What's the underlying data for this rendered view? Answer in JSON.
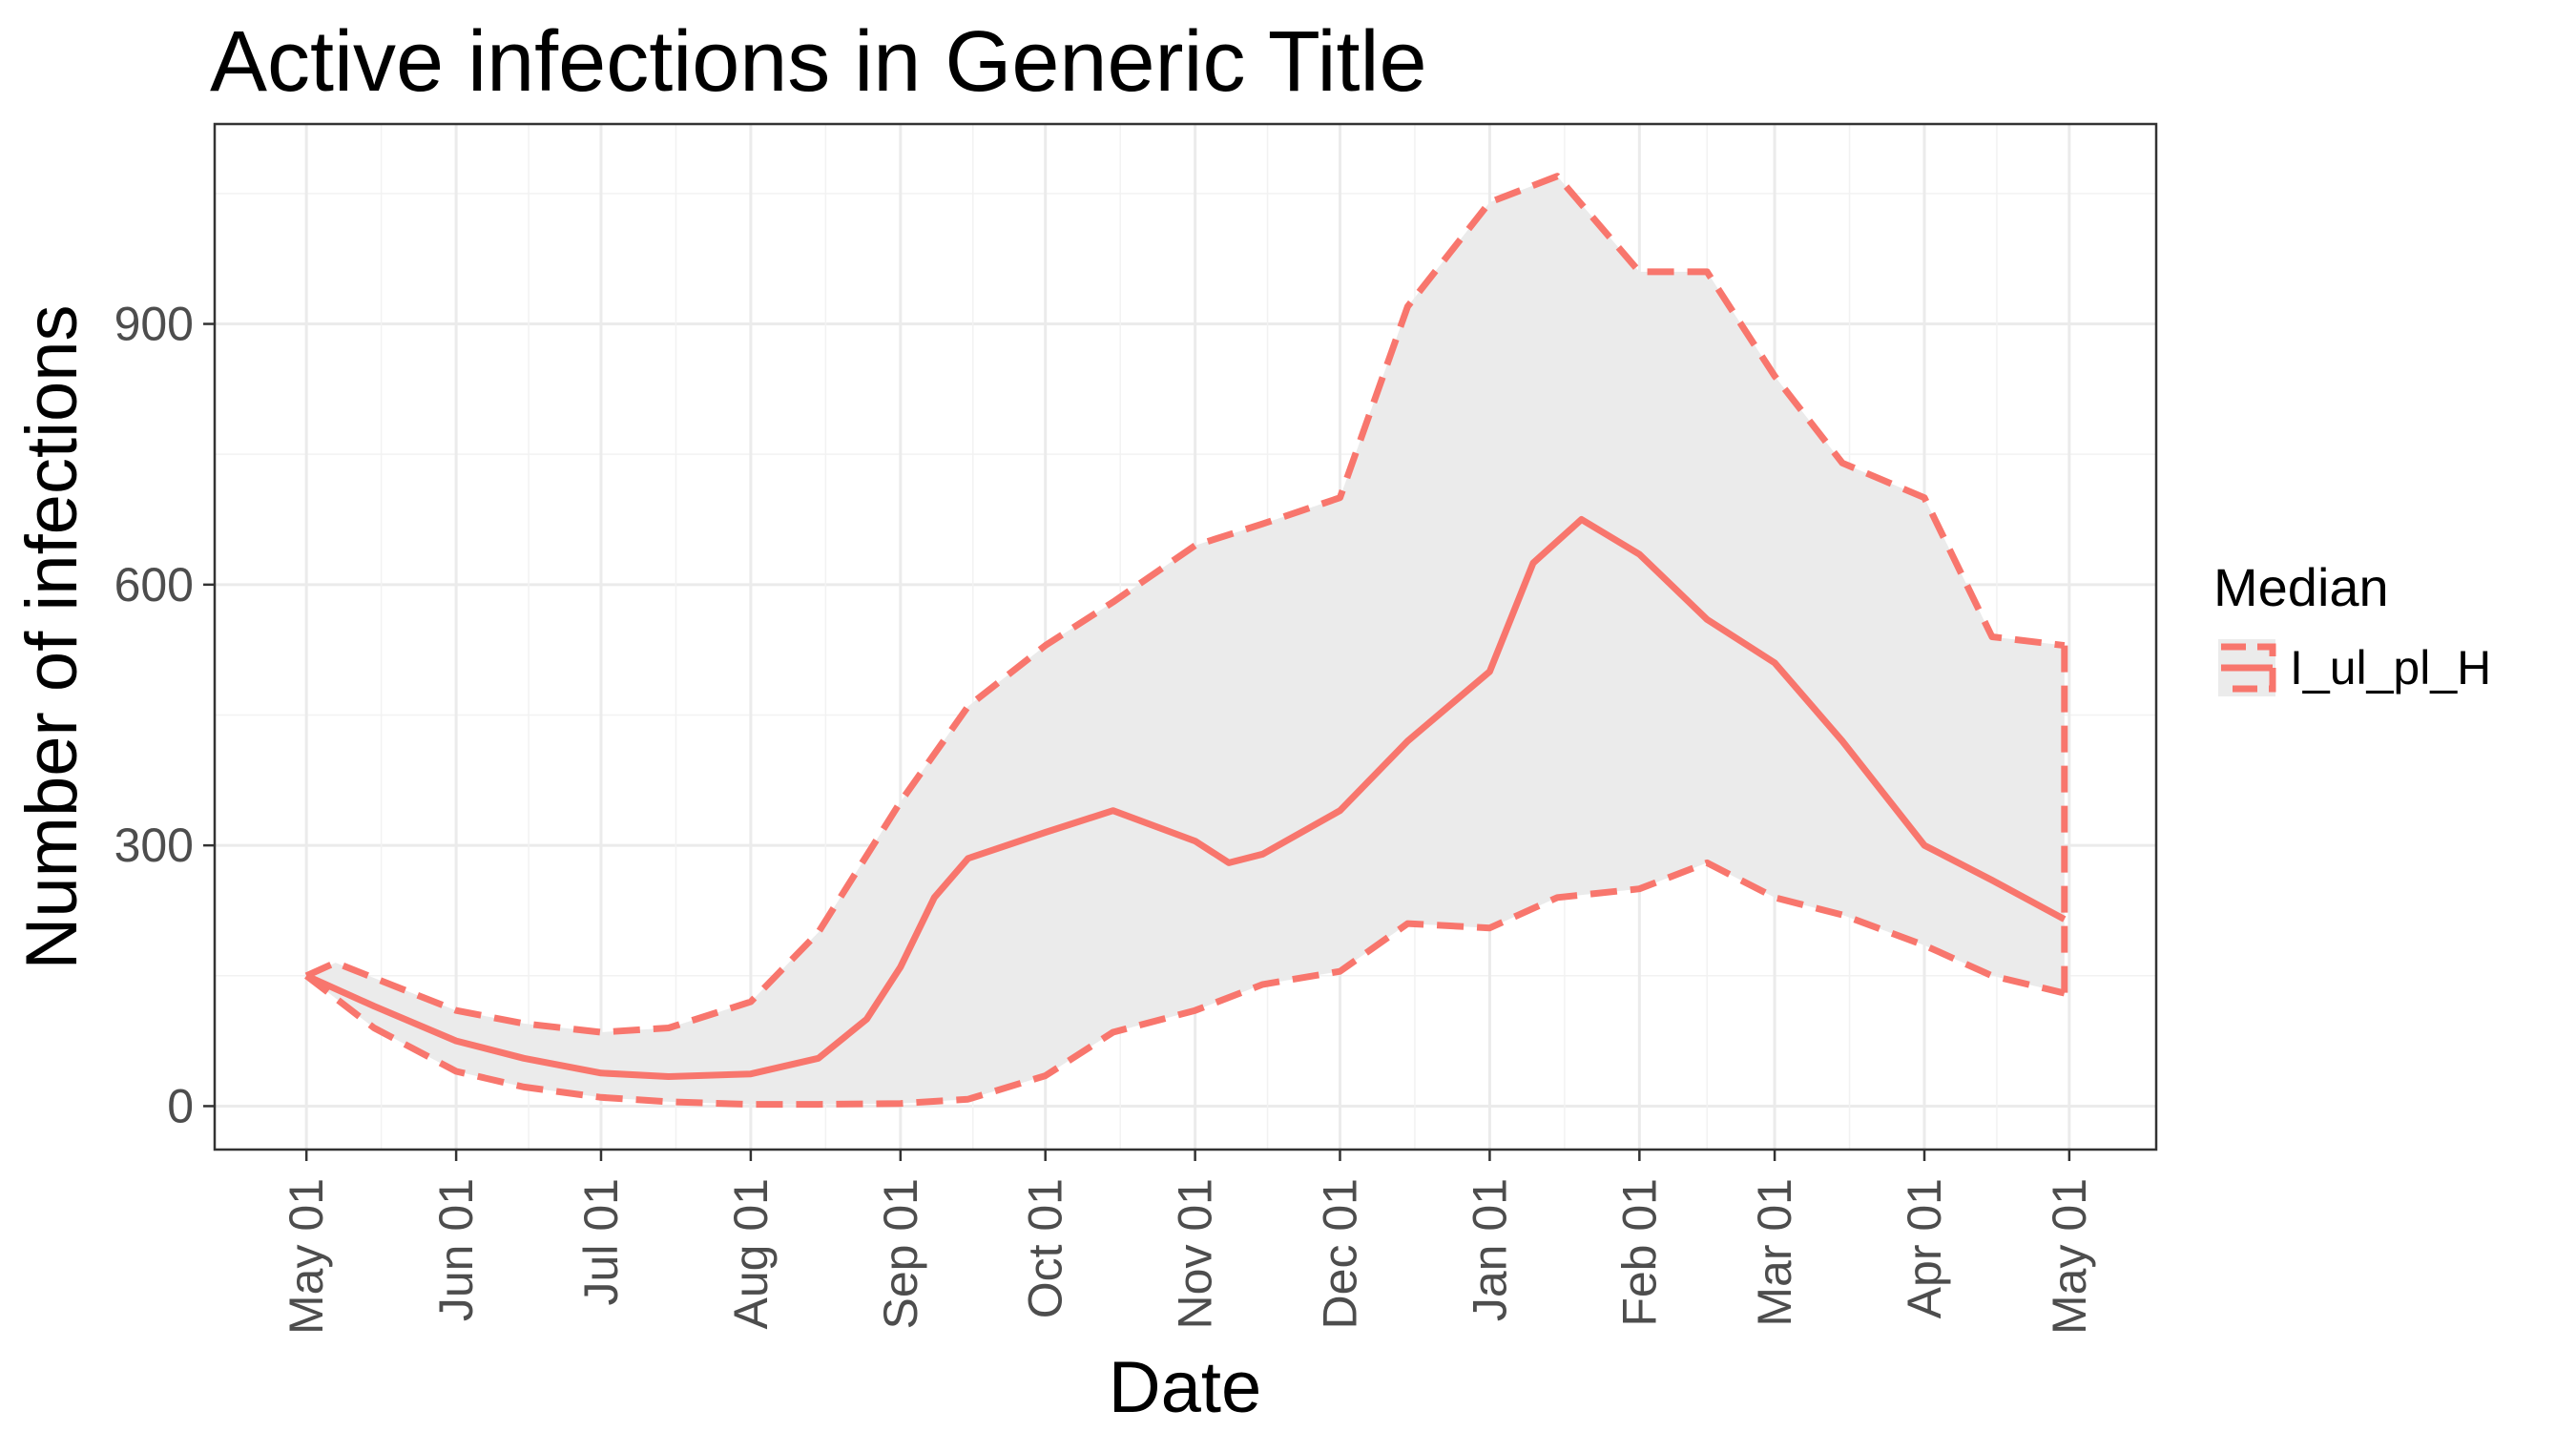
{
  "chart_data": {
    "type": "area",
    "title": "Active infections in Generic Title",
    "xlabel": "Date",
    "ylabel": "Number of infections",
    "x_ticks": [
      {
        "date": "2020-05-01",
        "label": "May 01"
      },
      {
        "date": "2020-06-01",
        "label": "Jun 01"
      },
      {
        "date": "2020-07-01",
        "label": "Jul 01"
      },
      {
        "date": "2020-08-01",
        "label": "Aug 01"
      },
      {
        "date": "2020-09-01",
        "label": "Sep 01"
      },
      {
        "date": "2020-10-01",
        "label": "Oct 01"
      },
      {
        "date": "2020-11-01",
        "label": "Nov 01"
      },
      {
        "date": "2020-12-01",
        "label": "Dec 01"
      },
      {
        "date": "2021-01-01",
        "label": "Jan 01"
      },
      {
        "date": "2021-02-01",
        "label": "Feb 01"
      },
      {
        "date": "2021-03-01",
        "label": "Mar 01"
      },
      {
        "date": "2021-04-01",
        "label": "Apr 01"
      },
      {
        "date": "2021-05-01",
        "label": "May 01"
      }
    ],
    "y_ticks": [
      0,
      300,
      600,
      900
    ],
    "xlim": [
      "2020-04-12",
      "2021-05-19"
    ],
    "ylim": [
      -50,
      1130
    ],
    "grid": true,
    "legend": {
      "title": "Median",
      "position": "right"
    },
    "ribbon_color": "#ebebeb",
    "series": [
      {
        "name": "I_ul_pl_H",
        "color": "#f8766d",
        "median": [
          [
            "2020-05-01",
            150
          ],
          [
            "2020-05-15",
            115
          ],
          [
            "2020-06-01",
            75
          ],
          [
            "2020-06-15",
            55
          ],
          [
            "2020-07-01",
            38
          ],
          [
            "2020-07-15",
            34
          ],
          [
            "2020-08-01",
            37
          ],
          [
            "2020-08-15",
            55
          ],
          [
            "2020-08-25",
            100
          ],
          [
            "2020-09-01",
            160
          ],
          [
            "2020-09-08",
            240
          ],
          [
            "2020-09-15",
            285
          ],
          [
            "2020-10-01",
            315
          ],
          [
            "2020-10-15",
            340
          ],
          [
            "2020-11-01",
            305
          ],
          [
            "2020-11-08",
            280
          ],
          [
            "2020-11-15",
            290
          ],
          [
            "2020-12-01",
            340
          ],
          [
            "2020-12-15",
            420
          ],
          [
            "2021-01-01",
            500
          ],
          [
            "2021-01-10",
            625
          ],
          [
            "2021-01-20",
            675
          ],
          [
            "2021-02-01",
            635
          ],
          [
            "2021-02-15",
            560
          ],
          [
            "2021-03-01",
            510
          ],
          [
            "2021-03-15",
            420
          ],
          [
            "2021-04-01",
            300
          ],
          [
            "2021-04-15",
            260
          ],
          [
            "2021-04-30",
            215
          ]
        ],
        "lower": [
          [
            "2020-05-01",
            150
          ],
          [
            "2020-05-15",
            90
          ],
          [
            "2020-06-01",
            40
          ],
          [
            "2020-06-15",
            22
          ],
          [
            "2020-07-01",
            10
          ],
          [
            "2020-07-15",
            5
          ],
          [
            "2020-08-01",
            2
          ],
          [
            "2020-08-15",
            2
          ],
          [
            "2020-09-01",
            3
          ],
          [
            "2020-09-15",
            8
          ],
          [
            "2020-10-01",
            35
          ],
          [
            "2020-10-15",
            85
          ],
          [
            "2020-11-01",
            110
          ],
          [
            "2020-11-15",
            140
          ],
          [
            "2020-12-01",
            155
          ],
          [
            "2020-12-15",
            210
          ],
          [
            "2021-01-01",
            205
          ],
          [
            "2021-01-15",
            240
          ],
          [
            "2021-02-01",
            250
          ],
          [
            "2021-02-15",
            280
          ],
          [
            "2021-03-01",
            240
          ],
          [
            "2021-03-15",
            220
          ],
          [
            "2021-04-01",
            185
          ],
          [
            "2021-04-15",
            150
          ],
          [
            "2021-04-30",
            130
          ]
        ],
        "upper": [
          [
            "2020-05-01",
            150
          ],
          [
            "2020-05-07",
            165
          ],
          [
            "2020-06-01",
            110
          ],
          [
            "2020-06-15",
            95
          ],
          [
            "2020-07-01",
            85
          ],
          [
            "2020-07-15",
            90
          ],
          [
            "2020-08-01",
            120
          ],
          [
            "2020-08-15",
            200
          ],
          [
            "2020-09-01",
            350
          ],
          [
            "2020-09-15",
            460
          ],
          [
            "2020-10-01",
            530
          ],
          [
            "2020-10-15",
            580
          ],
          [
            "2020-11-01",
            645
          ],
          [
            "2020-11-15",
            670
          ],
          [
            "2020-12-01",
            700
          ],
          [
            "2020-12-15",
            920
          ],
          [
            "2021-01-01",
            1040
          ],
          [
            "2021-01-15",
            1070
          ],
          [
            "2021-02-01",
            960
          ],
          [
            "2021-02-15",
            960
          ],
          [
            "2021-03-01",
            840
          ],
          [
            "2021-03-15",
            740
          ],
          [
            "2021-04-01",
            700
          ],
          [
            "2021-04-15",
            540
          ],
          [
            "2021-04-30",
            530
          ]
        ]
      }
    ]
  }
}
